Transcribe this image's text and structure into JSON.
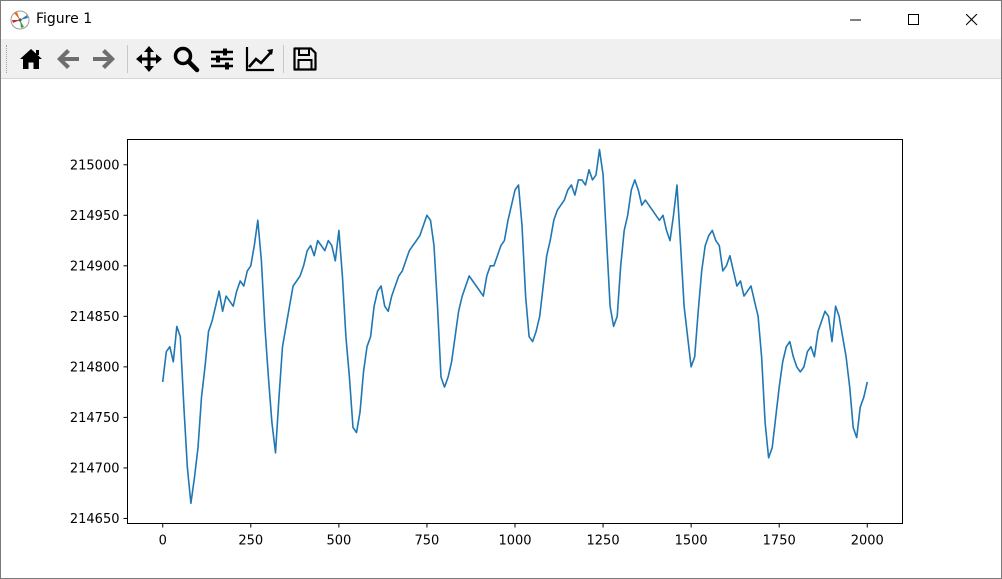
{
  "window": {
    "title": "Figure 1",
    "icons": [
      "matplotlib-logo-icon",
      "minimize-icon",
      "maximize-icon",
      "close-icon"
    ]
  },
  "toolbar": {
    "buttons": [
      {
        "name": "home",
        "icon": "home-icon"
      },
      {
        "name": "back",
        "icon": "arrow-left-icon"
      },
      {
        "name": "forward",
        "icon": "arrow-right-icon"
      },
      {
        "name": "pan",
        "icon": "move-icon"
      },
      {
        "name": "zoom",
        "icon": "magnifier-icon"
      },
      {
        "name": "subplots",
        "icon": "sliders-icon"
      },
      {
        "name": "edit-axis",
        "icon": "line-chart-icon"
      },
      {
        "name": "save",
        "icon": "floppy-disk-icon"
      }
    ]
  },
  "chart_data": {
    "type": "line",
    "title": "",
    "xlabel": "",
    "ylabel": "",
    "xlim": [
      -100,
      2100
    ],
    "ylim": [
      214645,
      215025
    ],
    "xticks": [
      0,
      250,
      500,
      750,
      1000,
      1250,
      1500,
      1750,
      2000
    ],
    "yticks": [
      214650,
      214700,
      214750,
      214800,
      214850,
      214900,
      214950,
      215000
    ],
    "xtick_labels": [
      "0",
      "250",
      "500",
      "750",
      "1000",
      "1250",
      "1500",
      "1750",
      "2000"
    ],
    "ytick_labels": [
      "214650",
      "214700",
      "214750",
      "214800",
      "214850",
      "214900",
      "214950",
      "215000"
    ],
    "grid": false,
    "color": "#1f77b4",
    "series": [
      {
        "x": [
          0,
          10,
          20,
          30,
          40,
          50,
          60,
          70,
          80,
          90,
          100,
          110,
          120,
          130,
          140,
          150,
          160,
          170,
          180,
          190,
          200,
          210,
          220,
          230,
          240,
          250,
          260,
          270,
          280,
          290,
          300,
          310,
          320,
          330,
          340,
          350,
          360,
          370,
          380,
          390,
          400,
          410,
          420,
          430,
          440,
          450,
          460,
          470,
          480,
          490,
          500,
          510,
          520,
          530,
          540,
          550,
          560,
          570,
          580,
          590,
          600,
          610,
          620,
          630,
          640,
          650,
          660,
          670,
          680,
          690,
          700,
          710,
          720,
          730,
          740,
          750,
          760,
          770,
          780,
          790,
          800,
          810,
          820,
          830,
          840,
          850,
          860,
          870,
          880,
          890,
          900,
          910,
          920,
          930,
          940,
          950,
          960,
          970,
          980,
          990,
          1000,
          1010,
          1020,
          1030,
          1040,
          1050,
          1060,
          1070,
          1080,
          1090,
          1100,
          1110,
          1120,
          1130,
          1140,
          1150,
          1160,
          1170,
          1180,
          1190,
          1200,
          1210,
          1220,
          1230,
          1240,
          1250,
          1260,
          1270,
          1280,
          1290,
          1300,
          1310,
          1320,
          1330,
          1340,
          1350,
          1360,
          1370,
          1380,
          1390,
          1400,
          1410,
          1420,
          1430,
          1440,
          1450,
          1460,
          1470,
          1480,
          1490,
          1500,
          1510,
          1520,
          1530,
          1540,
          1550,
          1560,
          1570,
          1580,
          1590,
          1600,
          1610,
          1620,
          1630,
          1640,
          1650,
          1660,
          1670,
          1680,
          1690,
          1700,
          1710,
          1720,
          1730,
          1740,
          1750,
          1760,
          1770,
          1780,
          1790,
          1800,
          1810,
          1820,
          1830,
          1840,
          1850,
          1860,
          1870,
          1880,
          1890,
          1900,
          1910,
          1920,
          1930,
          1940,
          1950,
          1960,
          1970,
          1980,
          1990,
          2000
        ],
        "y": [
          214785,
          214815,
          214820,
          214805,
          214840,
          214830,
          214760,
          214700,
          214665,
          214690,
          214720,
          214770,
          214800,
          214835,
          214845,
          214860,
          214875,
          214855,
          214870,
          214865,
          214860,
          214875,
          214885,
          214880,
          214895,
          214900,
          214920,
          214945,
          214905,
          214840,
          214790,
          214745,
          214715,
          214770,
          214820,
          214840,
          214860,
          214880,
          214885,
          214890,
          214900,
          214915,
          214920,
          214910,
          214925,
          214920,
          214915,
          214925,
          214920,
          214905,
          214935,
          214890,
          214830,
          214790,
          214740,
          214735,
          214755,
          214795,
          214820,
          214830,
          214860,
          214875,
          214880,
          214860,
          214855,
          214870,
          214880,
          214890,
          214895,
          214905,
          214915,
          214920,
          214925,
          214930,
          214940,
          214950,
          214945,
          214920,
          214860,
          214790,
          214780,
          214790,
          214805,
          214830,
          214855,
          214870,
          214880,
          214890,
          214885,
          214880,
          214875,
          214870,
          214890,
          214900,
          214900,
          214910,
          214920,
          214925,
          214945,
          214960,
          214975,
          214980,
          214940,
          214870,
          214830,
          214825,
          214835,
          214850,
          214880,
          214910,
          214925,
          214945,
          214955,
          214960,
          214965,
          214975,
          214980,
          214970,
          214985,
          214985,
          214980,
          214995,
          214985,
          214990,
          215015,
          214990,
          214925,
          214860,
          214840,
          214850,
          214900,
          214935,
          214950,
          214975,
          214985,
          214975,
          214960,
          214965,
          214960,
          214955,
          214950,
          214945,
          214950,
          214935,
          214925,
          214950,
          214980,
          214920,
          214860,
          214830,
          214800,
          214810,
          214855,
          214895,
          214920,
          214930,
          214935,
          214925,
          214920,
          214895,
          214900,
          214910,
          214895,
          214880,
          214885,
          214870,
          214875,
          214880,
          214865,
          214850,
          214810,
          214745,
          214710,
          214720,
          214750,
          214780,
          214805,
          214820,
          214825,
          214810,
          214800,
          214795,
          214800,
          214815,
          214820,
          214810,
          214835,
          214845,
          214855,
          214850,
          214825,
          214860,
          214850,
          214830,
          214810,
          214780,
          214740,
          214730,
          214760,
          214770,
          214785
        ]
      }
    ]
  }
}
